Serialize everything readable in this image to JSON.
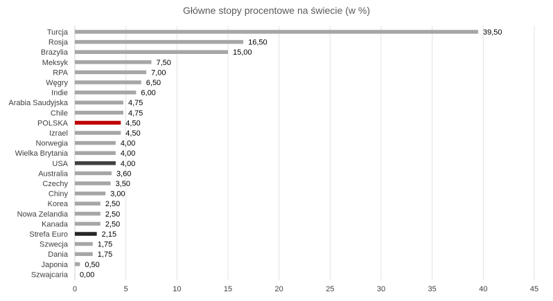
{
  "chart_data": {
    "type": "bar",
    "orientation": "horizontal",
    "title": "Główne stopy procentowe na świecie (w %)",
    "xlabel": "",
    "ylabel": "",
    "xlim": [
      0,
      45
    ],
    "x_ticks": [
      0,
      5,
      10,
      15,
      20,
      25,
      30,
      35,
      40,
      45
    ],
    "grid": "vertical",
    "legend": "none",
    "categories": [
      "Turcja",
      "Rosja",
      "Brazylia",
      "Meksyk",
      "RPA",
      "Węgry",
      "Indie",
      "Arabia Saudyjska",
      "Chile",
      "POLSKA",
      "Izrael",
      "Norwegia",
      "Wielka Brytania",
      "USA",
      "Australia",
      "Czechy",
      "Chiny",
      "Korea",
      "Nowa Zelandia",
      "Kanada",
      "Strefa Euro",
      "Szwecja",
      "Dania",
      "Japonia",
      "Szwajcaria"
    ],
    "values": [
      39.5,
      16.5,
      15.0,
      7.5,
      7.0,
      6.5,
      6.0,
      4.75,
      4.75,
      4.5,
      4.5,
      4.0,
      4.0,
      4.0,
      3.6,
      3.5,
      3.0,
      2.5,
      2.5,
      2.5,
      2.15,
      1.75,
      1.75,
      0.5,
      0.0
    ],
    "value_labels": [
      "39,50",
      "16,50",
      "15,00",
      "7,50",
      "7,00",
      "6,50",
      "6,00",
      "4,75",
      "4,75",
      "4,50",
      "4,50",
      "4,00",
      "4,00",
      "4,00",
      "3,60",
      "3,50",
      "3,00",
      "2,50",
      "2,50",
      "2,50",
      "2,15",
      "1,75",
      "1,75",
      "0,50",
      "0,00"
    ],
    "colors": {
      "default": "#a6a6a6",
      "POLSKA": "#c00000",
      "USA": "#404040",
      "Strefa Euro": "#262626"
    }
  }
}
